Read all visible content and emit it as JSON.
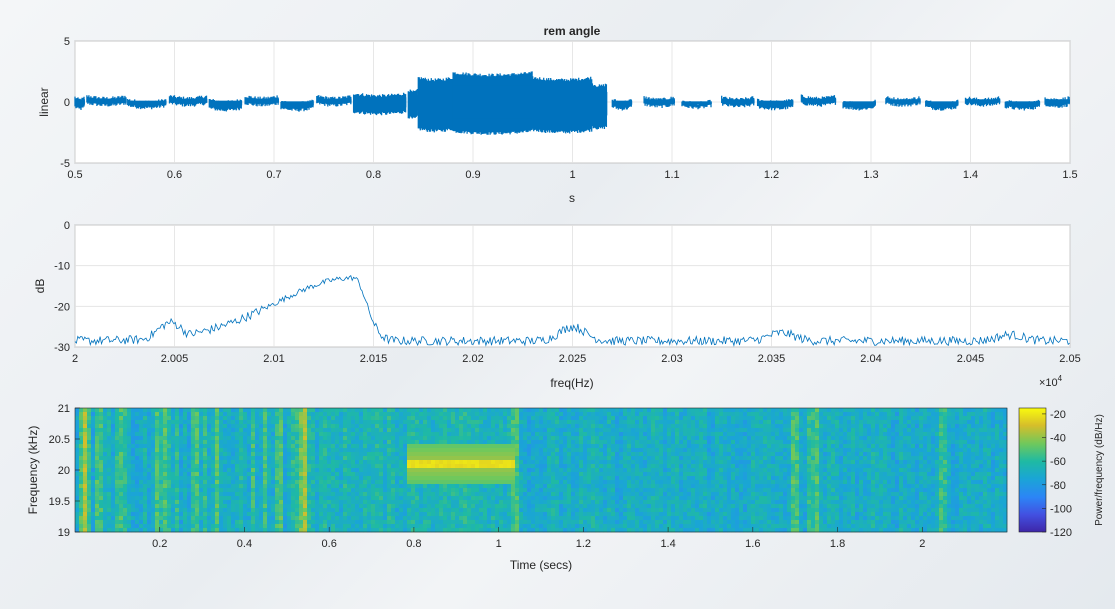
{
  "chart_data": [
    {
      "type": "line",
      "title": "rem angle",
      "xlabel": "s",
      "ylabel": "linear",
      "xlim": [
        0.5,
        1.5
      ],
      "ylim": [
        -5,
        5
      ],
      "x_ticks": [
        "0.5",
        "0.6",
        "0.7",
        "0.8",
        "0.9",
        "1",
        "1.1",
        "1.2",
        "1.3",
        "1.4",
        "1.5"
      ],
      "y_ticks": [
        "-5",
        "0",
        "5"
      ],
      "grid": true,
      "color": "#0072BD",
      "segments": [
        {
          "x": [
            0.5,
            0.51
          ],
          "y": [
            -0.4,
            0.4
          ]
        },
        {
          "x": [
            0.512,
            0.552
          ],
          "y": [
            -0.1,
            0.5
          ]
        },
        {
          "x": [
            0.553,
            0.592
          ],
          "y": [
            -0.3,
            0.2
          ]
        },
        {
          "x": [
            0.595,
            0.633
          ],
          "y": [
            -0.1,
            0.5
          ]
        },
        {
          "x": [
            0.635,
            0.668
          ],
          "y": [
            -0.5,
            0.2
          ]
        },
        {
          "x": [
            0.671,
            0.705
          ],
          "y": [
            -0.1,
            0.5
          ]
        },
        {
          "x": [
            0.707,
            0.74
          ],
          "y": [
            -0.5,
            0.1
          ]
        },
        {
          "x": [
            0.743,
            0.778
          ],
          "y": [
            -0.1,
            0.5
          ]
        },
        {
          "x": [
            0.78,
            0.833
          ],
          "y": [
            -0.8,
            0.7
          ]
        },
        {
          "x": [
            0.835,
            0.845
          ],
          "y": [
            -1.2,
            1.0
          ]
        },
        {
          "x": [
            0.845,
            0.88
          ],
          "y": [
            -2.2,
            2.0
          ]
        },
        {
          "x": [
            0.88,
            0.96
          ],
          "y": [
            -2.4,
            2.4
          ]
        },
        {
          "x": [
            0.96,
            1.02
          ],
          "y": [
            -2.3,
            2.0
          ]
        },
        {
          "x": [
            1.02,
            1.035
          ],
          "y": [
            -2.0,
            1.5
          ]
        },
        {
          "x": [
            1.04,
            1.06
          ],
          "y": [
            -0.4,
            0.2
          ]
        },
        {
          "x": [
            1.072,
            1.103
          ],
          "y": [
            -0.2,
            0.4
          ]
        },
        {
          "x": [
            1.11,
            1.14
          ],
          "y": [
            -0.3,
            0.1
          ]
        },
        {
          "x": [
            1.15,
            1.183
          ],
          "y": [
            -0.2,
            0.4
          ]
        },
        {
          "x": [
            1.186,
            1.222
          ],
          "y": [
            -0.4,
            0.2
          ]
        },
        {
          "x": [
            1.23,
            1.265
          ],
          "y": [
            -0.1,
            0.5
          ]
        },
        {
          "x": [
            1.272,
            1.305
          ],
          "y": [
            -0.4,
            0.1
          ]
        },
        {
          "x": [
            1.315,
            1.35
          ],
          "y": [
            -0.1,
            0.4
          ]
        },
        {
          "x": [
            1.355,
            1.388
          ],
          "y": [
            -0.4,
            0.1
          ]
        },
        {
          "x": [
            1.395,
            1.43
          ],
          "y": [
            -0.1,
            0.4
          ]
        },
        {
          "x": [
            1.435,
            1.47
          ],
          "y": [
            -0.4,
            0.1
          ]
        },
        {
          "x": [
            1.475,
            1.5
          ],
          "y": [
            -0.2,
            0.4
          ]
        }
      ]
    },
    {
      "type": "line",
      "title": "",
      "xlabel": "freq(Hz)",
      "ylabel": "dB",
      "xlim": [
        20000,
        20500
      ],
      "ylim": [
        -30,
        0
      ],
      "x_ticks": [
        "2",
        "2.005",
        "2.01",
        "2.015",
        "2.02",
        "2.025",
        "2.03",
        "2.035",
        "2.04",
        "2.045",
        "2.05"
      ],
      "x_multiplier": "×10",
      "x_multiplier_exp": "4",
      "y_ticks": [
        "-30",
        "-20",
        "-10",
        "0"
      ],
      "grid": true,
      "color": "#0072BD",
      "peaks": [
        {
          "x": 20048,
          "y": -24
        },
        {
          "x": 20140,
          "y": -13
        },
        {
          "x": 20250,
          "y": -25
        },
        {
          "x": 20355,
          "y": -26.5
        },
        {
          "x": 20470,
          "y": -27
        }
      ],
      "noise_floor_db": -28.5
    },
    {
      "type": "heatmap",
      "title": "",
      "xlabel": "Time (secs)",
      "ylabel": "Frequency (kHz)",
      "xlim": [
        0.0,
        2.2
      ],
      "ylim": [
        19,
        21
      ],
      "x_ticks": [
        "0.2",
        "0.4",
        "0.6",
        "0.8",
        "1",
        "1.2",
        "1.4",
        "1.6",
        "1.8",
        "2"
      ],
      "y_ticks": [
        "19",
        "19.5",
        "20",
        "20.5",
        "21"
      ],
      "colorbar_label": "Power/frequency (dB/Hz)",
      "colorbar_ticks": [
        "-20",
        "-40",
        "-60",
        "-80",
        "-100",
        "-120"
      ],
      "clim": [
        -120,
        -15
      ],
      "tone": {
        "t_start": 0.78,
        "t_end": 1.04,
        "freq_khz": 20.1,
        "level_db": -22
      },
      "bright_columns": [
        0.02,
        0.53,
        0.54,
        1.04,
        1.7,
        1.74,
        2.05
      ]
    }
  ]
}
